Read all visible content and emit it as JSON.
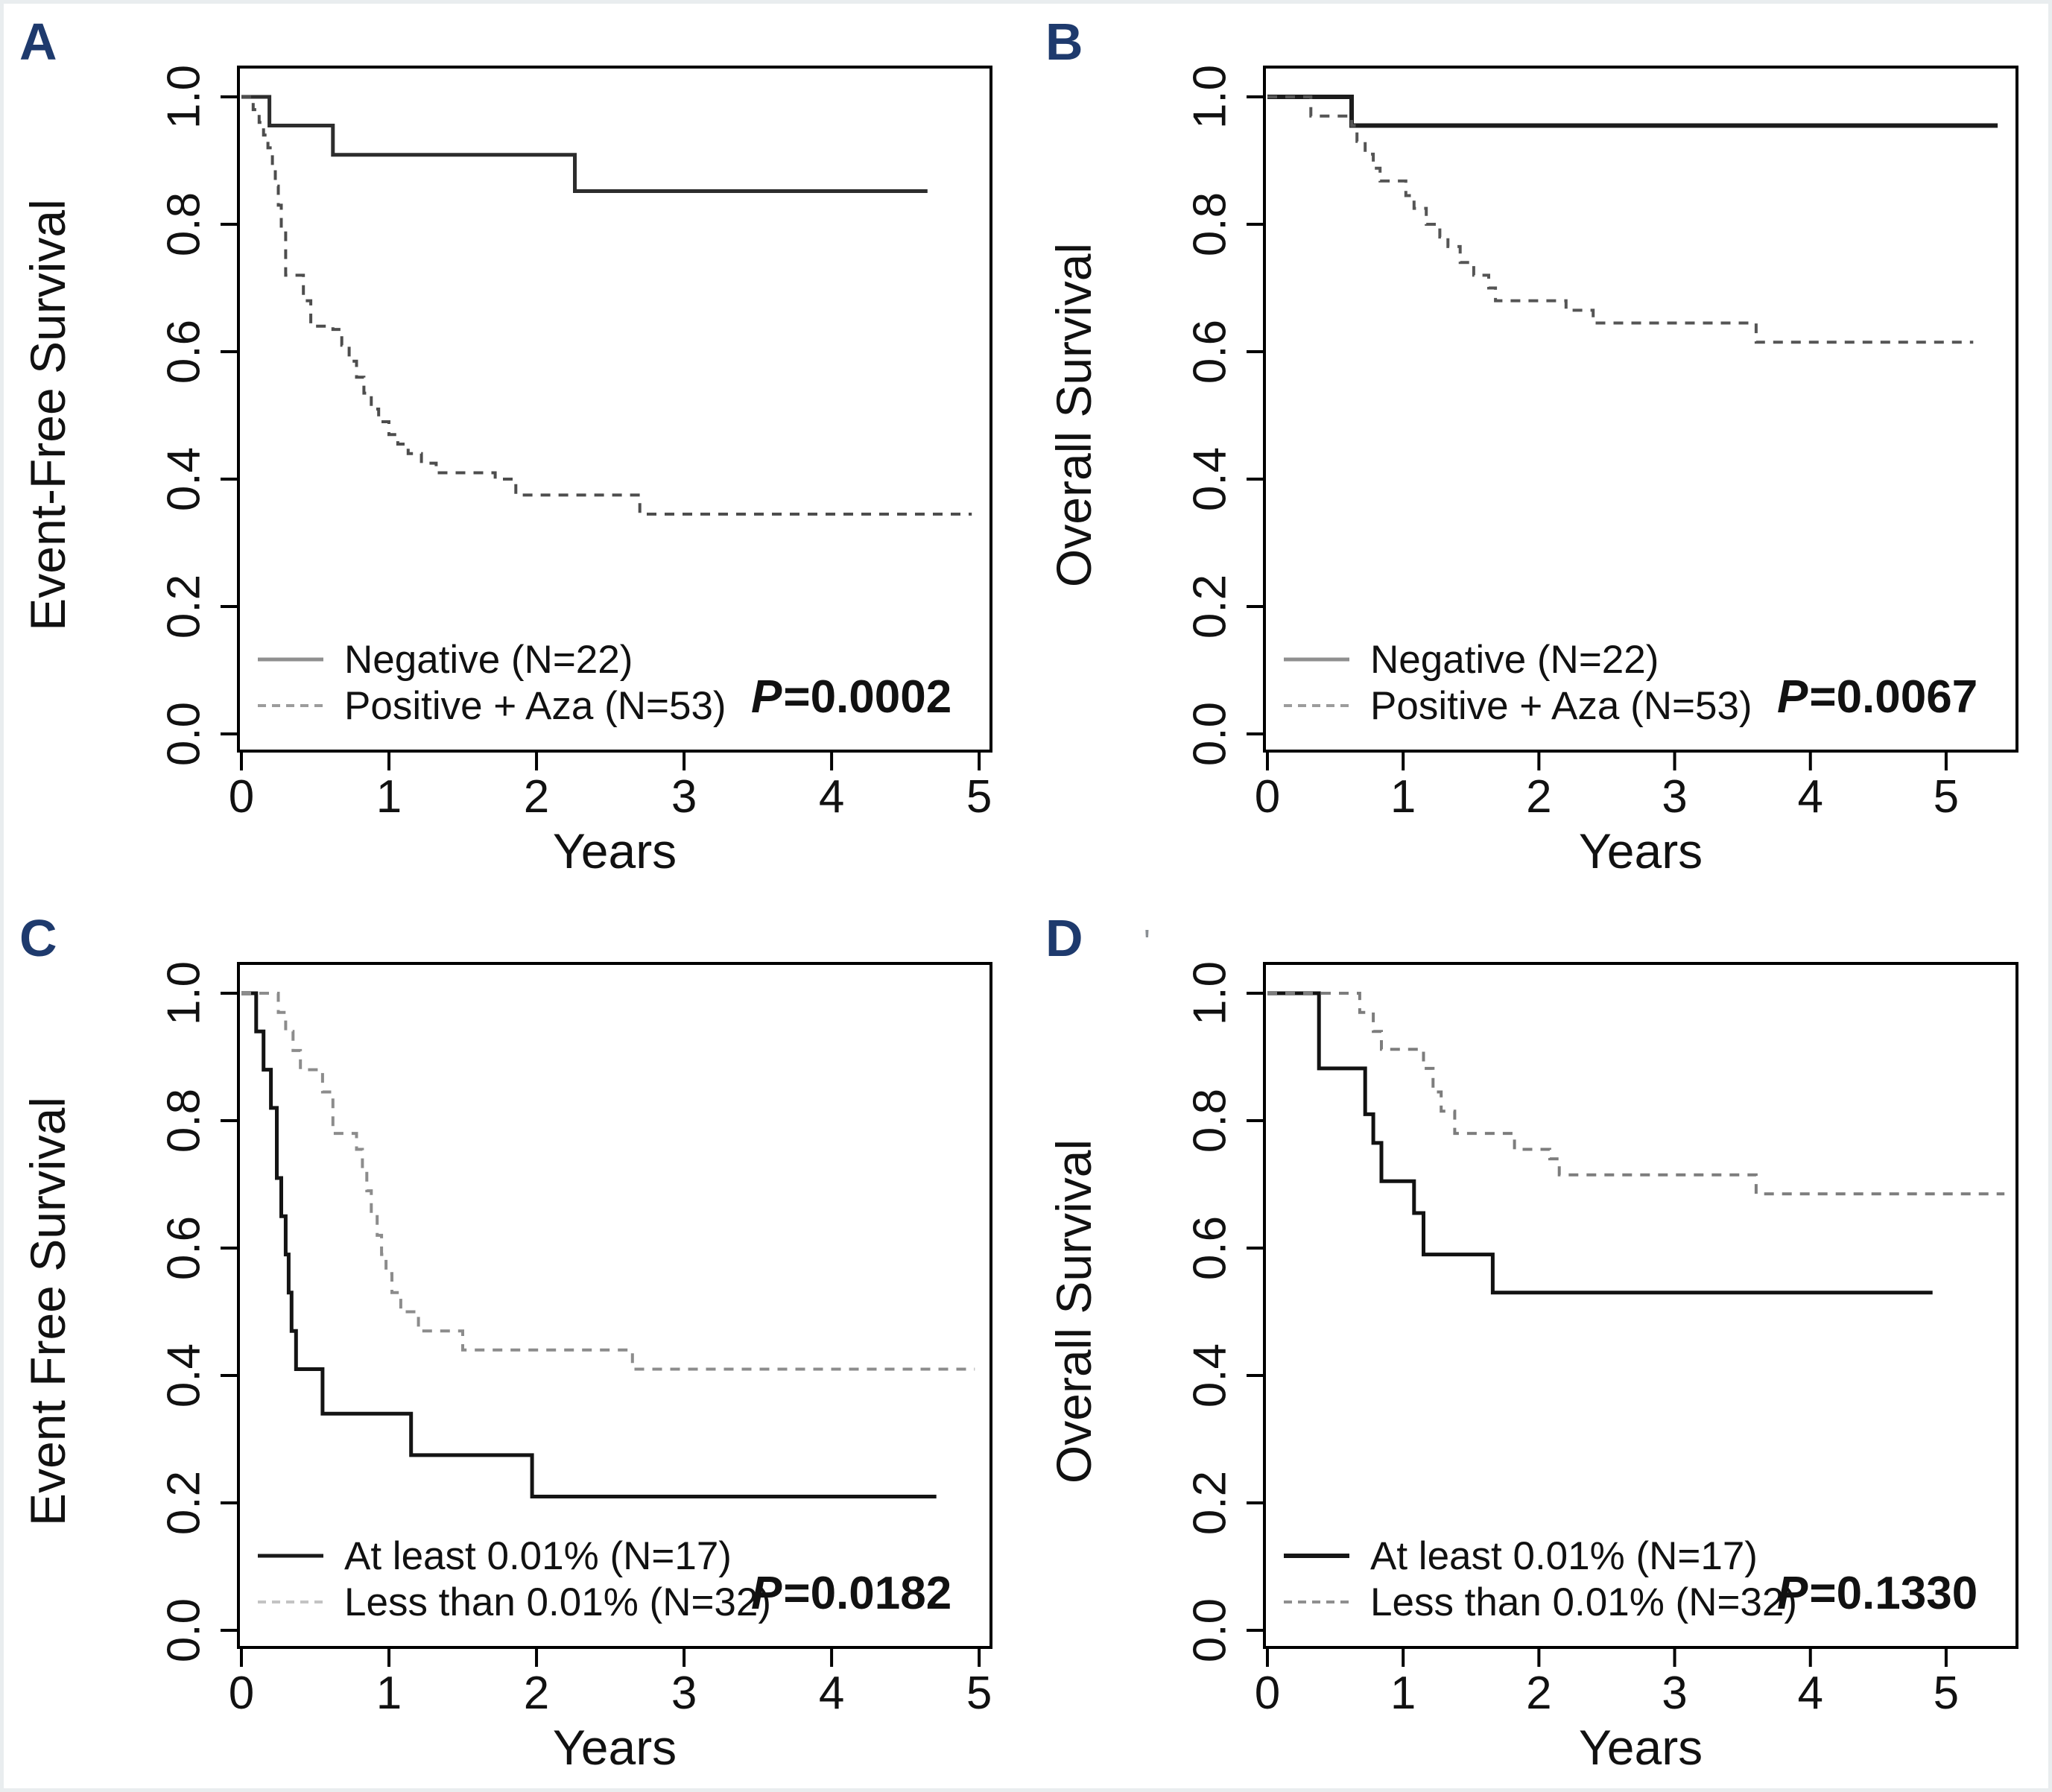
{
  "page": {
    "background": "#ffffff",
    "panel_label_color": "#1e3a6d",
    "stray_mark": "'"
  },
  "chart_data": [
    {
      "panel": "A",
      "type": "line",
      "subtype": "kaplan-meier-step",
      "title": "",
      "ylabel": "Event-Free Survival",
      "xlabel": "Years",
      "x_ticks": [
        0,
        1,
        2,
        3,
        4,
        5
      ],
      "y_ticks": [
        "0.0",
        "0.2",
        "0.4",
        "0.6",
        "0.8",
        "1.0"
      ],
      "xlim": [
        0,
        5.06
      ],
      "ylim": [
        0,
        1.0
      ],
      "grid": false,
      "legend_position": "bottom-left-inside",
      "p_italic": "P",
      "p_rest": "=0.0002",
      "legend": [
        {
          "label": "Negative (N=22)",
          "style": "solid",
          "color": "#8f8f8f",
          "weight": 5
        },
        {
          "label": "Positive + Aza (N=53)",
          "style": "dashed",
          "color": "#9c9c9c",
          "weight": 4
        }
      ],
      "series": [
        {
          "name": "Negative (N=22)",
          "style": "solid",
          "color": "#2d2d2d",
          "width": 5,
          "points": [
            [
              0,
              1.0
            ],
            [
              0.19,
              0.955
            ],
            [
              0.62,
              0.909
            ],
            [
              2.26,
              0.852
            ],
            [
              4.65,
              0.852
            ]
          ]
        },
        {
          "name": "Positive + Aza (N=53)",
          "style": "dashed",
          "color": "#4d4d4d",
          "width": 4,
          "points": [
            [
              0,
              1.0
            ],
            [
              0.08,
              0.98
            ],
            [
              0.12,
              0.96
            ],
            [
              0.15,
              0.94
            ],
            [
              0.18,
              0.92
            ],
            [
              0.21,
              0.89
            ],
            [
              0.23,
              0.86
            ],
            [
              0.25,
              0.83
            ],
            [
              0.27,
              0.79
            ],
            [
              0.3,
              0.72
            ],
            [
              0.42,
              0.68
            ],
            [
              0.47,
              0.64
            ],
            [
              0.62,
              0.635
            ],
            [
              0.68,
              0.61
            ],
            [
              0.73,
              0.585
            ],
            [
              0.78,
              0.56
            ],
            [
              0.83,
              0.535
            ],
            [
              0.88,
              0.51
            ],
            [
              0.93,
              0.49
            ],
            [
              1.0,
              0.47
            ],
            [
              1.06,
              0.455
            ],
            [
              1.13,
              0.44
            ],
            [
              1.22,
              0.425
            ],
            [
              1.32,
              0.41
            ],
            [
              1.72,
              0.4
            ],
            [
              1.86,
              0.375
            ],
            [
              2.7,
              0.345
            ],
            [
              4.95,
              0.345
            ]
          ]
        }
      ]
    },
    {
      "panel": "B",
      "type": "line",
      "subtype": "kaplan-meier-step",
      "title": "",
      "ylabel": "Overall Survival",
      "xlabel": "Years",
      "x_ticks": [
        0,
        1,
        2,
        3,
        4,
        5
      ],
      "y_ticks": [
        "0.0",
        "0.2",
        "0.4",
        "0.6",
        "0.8",
        "1.0"
      ],
      "xlim": [
        0,
        5.5
      ],
      "ylim": [
        0,
        1.0
      ],
      "grid": false,
      "legend_position": "bottom-left-inside",
      "p_italic": "P",
      "p_rest": "=0.0067",
      "legend": [
        {
          "label": "Negative (N=22)",
          "style": "solid",
          "color": "#8f8f8f",
          "weight": 5
        },
        {
          "label": "Positive + Aza (N=53)",
          "style": "dashed",
          "color": "#9c9c9c",
          "weight": 4
        }
      ],
      "series": [
        {
          "name": "Negative (N=22)",
          "style": "solid",
          "color": "#1c1c1c",
          "width": 6,
          "points": [
            [
              0,
              1.0
            ],
            [
              0.62,
              0.955
            ],
            [
              5.38,
              0.955
            ]
          ]
        },
        {
          "name": "Positive + Aza (N=53)",
          "style": "dashed",
          "color": "#555555",
          "width": 4,
          "points": [
            [
              0,
              1.0
            ],
            [
              0.32,
              0.97
            ],
            [
              0.62,
              0.955
            ],
            [
              0.66,
              0.93
            ],
            [
              0.72,
              0.91
            ],
            [
              0.78,
              0.888
            ],
            [
              0.83,
              0.868
            ],
            [
              1.02,
              0.845
            ],
            [
              1.08,
              0.825
            ],
            [
              1.17,
              0.8
            ],
            [
              1.27,
              0.78
            ],
            [
              1.33,
              0.765
            ],
            [
              1.42,
              0.74
            ],
            [
              1.52,
              0.72
            ],
            [
              1.63,
              0.7
            ],
            [
              1.68,
              0.68
            ],
            [
              2.2,
              0.665
            ],
            [
              2.4,
              0.645
            ],
            [
              3.6,
              0.615
            ],
            [
              5.2,
              0.615
            ]
          ]
        }
      ]
    },
    {
      "panel": "C",
      "type": "line",
      "subtype": "kaplan-meier-step",
      "title": "",
      "ylabel": "Event Free Survival",
      "xlabel": "Years",
      "x_ticks": [
        0,
        1,
        2,
        3,
        4,
        5
      ],
      "y_ticks": [
        "0.0",
        "0.2",
        "0.4",
        "0.6",
        "0.8",
        "1.0"
      ],
      "xlim": [
        0,
        5.06
      ],
      "ylim": [
        0,
        1.0
      ],
      "grid": false,
      "legend_position": "bottom-left-inside",
      "p_italic": "P",
      "p_rest": "=0.0182",
      "legend": [
        {
          "label": "At least 0.01% (N=17)",
          "style": "solid",
          "color": "#1a1a1a",
          "weight": 5
        },
        {
          "label": "Less than 0.01% (N=32)",
          "style": "dashed",
          "color": "#c3c3c3",
          "weight": 4
        }
      ],
      "series": [
        {
          "name": "At least 0.01% (N=17)",
          "style": "solid",
          "color": "#141414",
          "width": 5,
          "points": [
            [
              0,
              1.0
            ],
            [
              0.1,
              0.94
            ],
            [
              0.15,
              0.88
            ],
            [
              0.2,
              0.82
            ],
            [
              0.24,
              0.71
            ],
            [
              0.27,
              0.65
            ],
            [
              0.3,
              0.59
            ],
            [
              0.32,
              0.53
            ],
            [
              0.34,
              0.47
            ],
            [
              0.37,
              0.41
            ],
            [
              0.55,
              0.34
            ],
            [
              1.15,
              0.275
            ],
            [
              1.97,
              0.21
            ],
            [
              4.71,
              0.21
            ]
          ]
        },
        {
          "name": "Less than 0.01% (N=32)",
          "style": "dashed",
          "color": "#8c8c8c",
          "width": 4,
          "points": [
            [
              0,
              1.0
            ],
            [
              0.25,
              0.97
            ],
            [
              0.3,
              0.94
            ],
            [
              0.35,
              0.91
            ],
            [
              0.4,
              0.88
            ],
            [
              0.55,
              0.845
            ],
            [
              0.62,
              0.78
            ],
            [
              0.78,
              0.755
            ],
            [
              0.82,
              0.72
            ],
            [
              0.85,
              0.69
            ],
            [
              0.88,
              0.655
            ],
            [
              0.92,
              0.62
            ],
            [
              0.95,
              0.59
            ],
            [
              0.98,
              0.56
            ],
            [
              1.02,
              0.53
            ],
            [
              1.08,
              0.5
            ],
            [
              1.2,
              0.47
            ],
            [
              1.5,
              0.44
            ],
            [
              2.65,
              0.41
            ],
            [
              4.97,
              0.41
            ]
          ]
        }
      ]
    },
    {
      "panel": "D",
      "type": "line",
      "subtype": "kaplan-meier-step",
      "title": "",
      "ylabel": "Overall Survival",
      "xlabel": "Years",
      "x_ticks": [
        0,
        1,
        2,
        3,
        4,
        5
      ],
      "y_ticks": [
        "0.0",
        "0.2",
        "0.4",
        "0.6",
        "0.8",
        "1.0"
      ],
      "xlim": [
        0,
        5.5
      ],
      "ylim": [
        0,
        1.0
      ],
      "grid": false,
      "legend_position": "bottom-left-inside",
      "p_italic": "P",
      "p_rest": "=0.1330",
      "legend": [
        {
          "label": "At least 0.01% (N=17)",
          "style": "solid",
          "color": "#161616",
          "weight": 6
        },
        {
          "label": "Less than 0.01% (N=32)",
          "style": "dashed",
          "color": "#8f8f8f",
          "weight": 4
        }
      ],
      "series": [
        {
          "name": "At least 0.01% (N=17)",
          "style": "solid",
          "color": "#121212",
          "width": 5,
          "points": [
            [
              0,
              1.0
            ],
            [
              0.38,
              0.882
            ],
            [
              0.72,
              0.81
            ],
            [
              0.78,
              0.765
            ],
            [
              0.84,
              0.705
            ],
            [
              1.08,
              0.655
            ],
            [
              1.15,
              0.59
            ],
            [
              1.66,
              0.53
            ],
            [
              4.9,
              0.53
            ]
          ]
        },
        {
          "name": "Less than 0.01% (N=32)",
          "style": "dashed",
          "color": "#7d7d7d",
          "width": 4,
          "points": [
            [
              0,
              1.0
            ],
            [
              0.68,
              0.97
            ],
            [
              0.78,
              0.94
            ],
            [
              0.84,
              0.912
            ],
            [
              1.15,
              0.882
            ],
            [
              1.22,
              0.845
            ],
            [
              1.28,
              0.815
            ],
            [
              1.38,
              0.78
            ],
            [
              1.82,
              0.755
            ],
            [
              2.08,
              0.74
            ],
            [
              2.15,
              0.715
            ],
            [
              3.6,
              0.685
            ],
            [
              5.43,
              0.685
            ]
          ]
        }
      ]
    }
  ]
}
